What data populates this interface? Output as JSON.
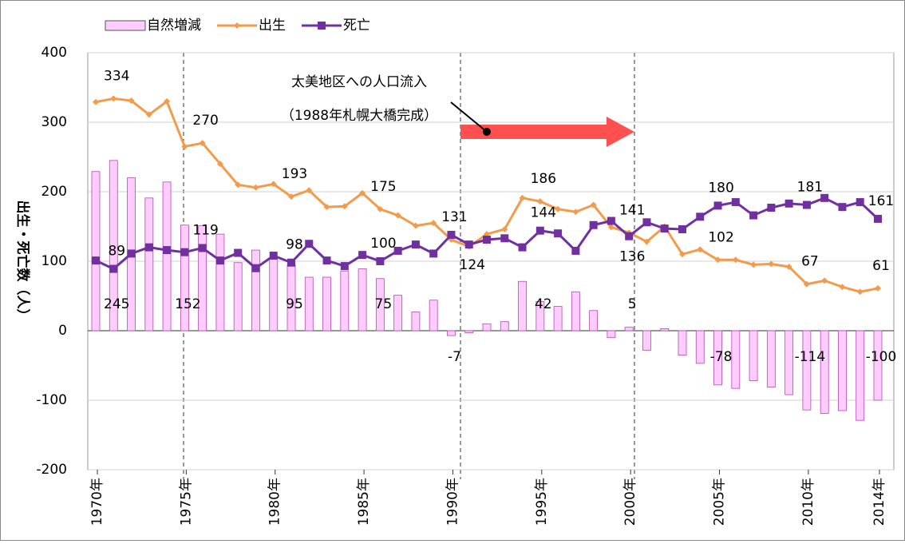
{
  "chart_data": {
    "type": "combo",
    "y_axis_label": "出生・死亡数（人）",
    "annotations": [
      "太美地区への人口流入",
      "（1988年札幌大橋完成）"
    ],
    "categories": [
      "1970年",
      null,
      null,
      null,
      null,
      "1975年",
      null,
      null,
      null,
      null,
      "1980年",
      null,
      null,
      null,
      null,
      "1985年",
      null,
      null,
      null,
      null,
      "1990年",
      null,
      null,
      null,
      null,
      "1995年",
      null,
      null,
      null,
      null,
      "2000年",
      null,
      null,
      null,
      null,
      "2005年",
      null,
      null,
      null,
      null,
      "2010年",
      null,
      null,
      null,
      "2014年"
    ],
    "series": [
      {
        "name": "自然増減",
        "kind": "bar",
        "color": "#ffccff",
        "edge": "#b04cb0",
        "values": [
          229,
          245,
          220,
          191,
          214,
          152,
          151,
          139,
          98,
          116,
          103,
          95,
          77,
          77,
          86,
          89,
          75,
          51,
          27,
          44,
          -7,
          -3,
          10,
          13,
          71,
          42,
          35,
          56,
          29,
          -10,
          5,
          -28,
          3,
          -35,
          -47,
          -78,
          -83,
          -72,
          -81,
          -92,
          -114,
          -119,
          -115,
          -129,
          -100
        ],
        "value_labels": [
          null,
          "245",
          null,
          null,
          null,
          "152",
          null,
          null,
          null,
          null,
          null,
          "95",
          null,
          null,
          null,
          null,
          "75",
          null,
          null,
          null,
          "-7",
          null,
          null,
          null,
          null,
          "42",
          null,
          null,
          null,
          null,
          "5",
          null,
          null,
          null,
          null,
          "-78",
          null,
          null,
          null,
          null,
          "-114",
          null,
          null,
          null,
          "-100"
        ]
      },
      {
        "name": "出生",
        "kind": "line",
        "color": "#f39b4a",
        "values": [
          329,
          334,
          331,
          311,
          330,
          265,
          270,
          240,
          210,
          206,
          211,
          193,
          202,
          178,
          179,
          198,
          175,
          166,
          151,
          155,
          131,
          121,
          139,
          146,
          191,
          186,
          175,
          171,
          181,
          149,
          141,
          128,
          150,
          110,
          117,
          102,
          102,
          95,
          96,
          92,
          67,
          72,
          63,
          56,
          61
        ],
        "value_labels": [
          null,
          "334",
          null,
          null,
          null,
          null,
          "270",
          null,
          null,
          null,
          null,
          "193",
          null,
          null,
          null,
          null,
          "175",
          null,
          null,
          null,
          "131",
          null,
          null,
          null,
          null,
          "186",
          null,
          null,
          null,
          null,
          "141",
          null,
          null,
          null,
          null,
          "102",
          null,
          null,
          null,
          null,
          "67",
          null,
          null,
          null,
          "61"
        ]
      },
      {
        "name": "死亡",
        "kind": "line",
        "color": "#7030a0",
        "values": [
          101,
          89,
          111,
          120,
          116,
          113,
          119,
          101,
          112,
          90,
          108,
          98,
          125,
          101,
          93,
          109,
          100,
          115,
          124,
          111,
          138,
          124,
          131,
          133,
          120,
          144,
          140,
          115,
          152,
          158,
          136,
          156,
          147,
          146,
          164,
          180,
          185,
          166,
          177,
          183,
          181,
          191,
          178,
          185,
          161
        ],
        "value_labels": [
          null,
          "89",
          null,
          null,
          null,
          null,
          "119",
          null,
          null,
          null,
          null,
          "98",
          null,
          null,
          null,
          null,
          "100",
          null,
          null,
          null,
          null,
          "124",
          null,
          null,
          null,
          "144",
          null,
          null,
          null,
          null,
          "136",
          null,
          null,
          null,
          null,
          "180",
          null,
          null,
          null,
          null,
          "181",
          null,
          null,
          null,
          "161"
        ]
      }
    ],
    "ylim": [
      -200,
      400
    ],
    "yticks": [
      -200,
      -100,
      0,
      100,
      200,
      300,
      400
    ],
    "grid": true,
    "negative_color": "#ff0000"
  }
}
